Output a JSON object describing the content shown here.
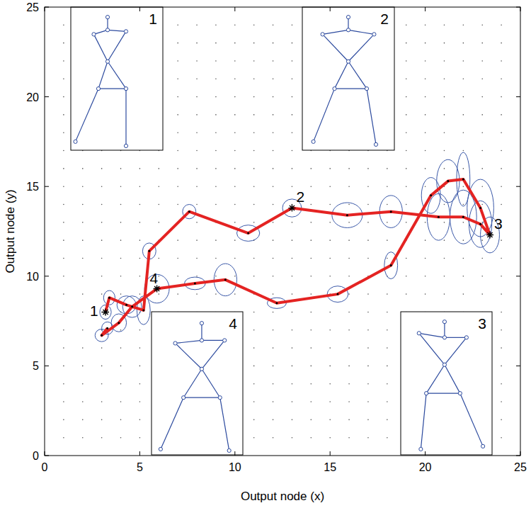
{
  "chart_data": {
    "type": "line",
    "x_label": "Output node (x)",
    "y_label": "Output node (y)",
    "xlim": [
      0,
      25
    ],
    "ylim": [
      0,
      25
    ],
    "xticks": [
      0,
      5,
      10,
      15,
      20,
      25
    ],
    "yticks": [
      0,
      5,
      10,
      15,
      20,
      25
    ],
    "grid": true,
    "series": [
      {
        "color": "#e42322",
        "marker": "dot",
        "line_style": "solid",
        "x": [
          3.2,
          3.4,
          4.3,
          5.2,
          5.5,
          7.6,
          10.7,
          13.0,
          15.9,
          18.2,
          20.7,
          22.0,
          22.9,
          23.4,
          22.9,
          22.0,
          21.2,
          20.3,
          18.2,
          15.4,
          12.2,
          9.5,
          7.9,
          5.9,
          4.6,
          3.9,
          3.0,
          3.3
        ],
        "values": [
          8.0,
          8.8,
          8.4,
          8.1,
          11.4,
          13.6,
          12.4,
          13.8,
          13.4,
          13.6,
          13.3,
          13.3,
          12.9,
          12.3,
          13.8,
          15.4,
          15.3,
          14.5,
          10.6,
          9.0,
          8.5,
          9.8,
          9.6,
          9.3,
          8.3,
          7.4,
          6.7,
          7.1
        ],
        "x_spread": [
          0.3,
          0.3,
          0.5,
          0.35,
          0.35,
          0.35,
          0.6,
          0.5,
          0.8,
          0.6,
          0.6,
          0.7,
          0.6,
          0.5,
          0.7,
          0.35,
          0.6,
          0.5,
          0.35,
          0.55,
          0.5,
          0.6,
          0.55,
          0.65,
          0.5,
          0.4,
          0.35,
          0.3
        ],
        "y_spread": [
          0.4,
          0.4,
          0.5,
          0.8,
          0.45,
          0.4,
          0.45,
          0.5,
          0.7,
          0.9,
          1.3,
          1.5,
          1.3,
          1.0,
          1.6,
          1.5,
          1.2,
          1.0,
          0.75,
          0.45,
          0.3,
          0.9,
          0.35,
          0.8,
          0.6,
          0.5,
          0.35,
          0.35
        ]
      }
    ],
    "annotations": [
      {
        "label": "1",
        "x": 3.2,
        "y": 8.0
      },
      {
        "label": "2",
        "x": 13.0,
        "y": 13.8
      },
      {
        "label": "3",
        "x": 23.4,
        "y": 12.3
      },
      {
        "label": "4",
        "x": 5.9,
        "y": 9.3
      }
    ]
  }
}
